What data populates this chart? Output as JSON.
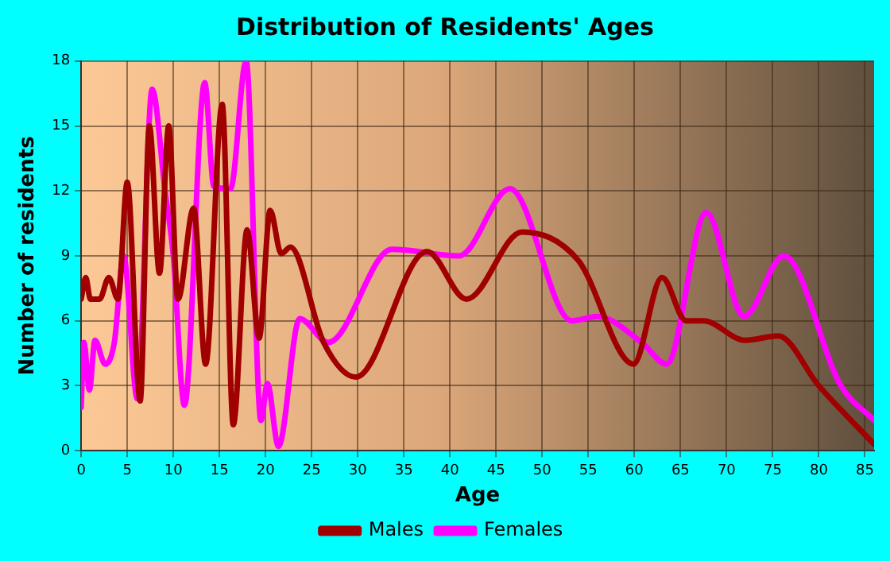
{
  "chart_data": {
    "type": "line",
    "title": "Distribution of Residents' Ages",
    "xlabel": "Age",
    "ylabel": "Number of residents",
    "xlim": [
      0,
      86
    ],
    "xticks": [
      0,
      5,
      10,
      15,
      20,
      25,
      30,
      35,
      40,
      45,
      50,
      55,
      60,
      65,
      70,
      75,
      80,
      85
    ],
    "ylim": [
      0,
      18
    ],
    "yticks": [
      0,
      3,
      6,
      9,
      12,
      15,
      18
    ],
    "grid": true,
    "legend": "bottom",
    "marker": "none",
    "line_style": "solid",
    "series": [
      {
        "name": "Males",
        "color": "#a00000",
        "x": [
          0,
          0.5,
          1,
          2,
          3,
          4,
          5,
          6.4,
          7.4,
          8.5,
          9.5,
          10.5,
          12.2,
          13.5,
          15.3,
          16.5,
          18,
          19.3,
          20.5,
          21.7,
          22.7,
          26.3,
          29.8,
          37.5,
          41.8,
          47.8,
          53.9,
          59.9,
          63,
          65.6,
          67.5,
          72,
          75.6,
          80,
          86
        ],
        "values": [
          7,
          8,
          7,
          7,
          8,
          7,
          12.4,
          2.3,
          15,
          8.2,
          15,
          7,
          11.2,
          4,
          16,
          1.2,
          10.2,
          5.2,
          11.1,
          9.1,
          9.4,
          5,
          3.4,
          9.2,
          7,
          10.1,
          8.8,
          4,
          8,
          6,
          6,
          5.1,
          5.3,
          3,
          0.3
        ]
      },
      {
        "name": "Females",
        "color": "#ff00ff",
        "x": [
          0,
          0.3,
          0.9,
          1.5,
          2.6,
          3.6,
          4.6,
          6.1,
          7.7,
          9.1,
          10,
          11.2,
          13.4,
          14.4,
          16.2,
          17.9,
          19.5,
          20.2,
          21.4,
          23.7,
          26.8,
          33.7,
          41,
          46.5,
          53.2,
          56,
          60.8,
          63.5,
          67.8,
          71.9,
          76.2,
          82.4,
          86
        ],
        "values": [
          2,
          5,
          2.8,
          5.1,
          4,
          5,
          9,
          2.4,
          16.7,
          12,
          9,
          2.1,
          17,
          12.2,
          12.1,
          18,
          1.4,
          3.1,
          0.2,
          6.1,
          5,
          9.3,
          9,
          12.1,
          6,
          6.2,
          5,
          4,
          11,
          6.2,
          9,
          3,
          1.4
        ]
      }
    ]
  }
}
